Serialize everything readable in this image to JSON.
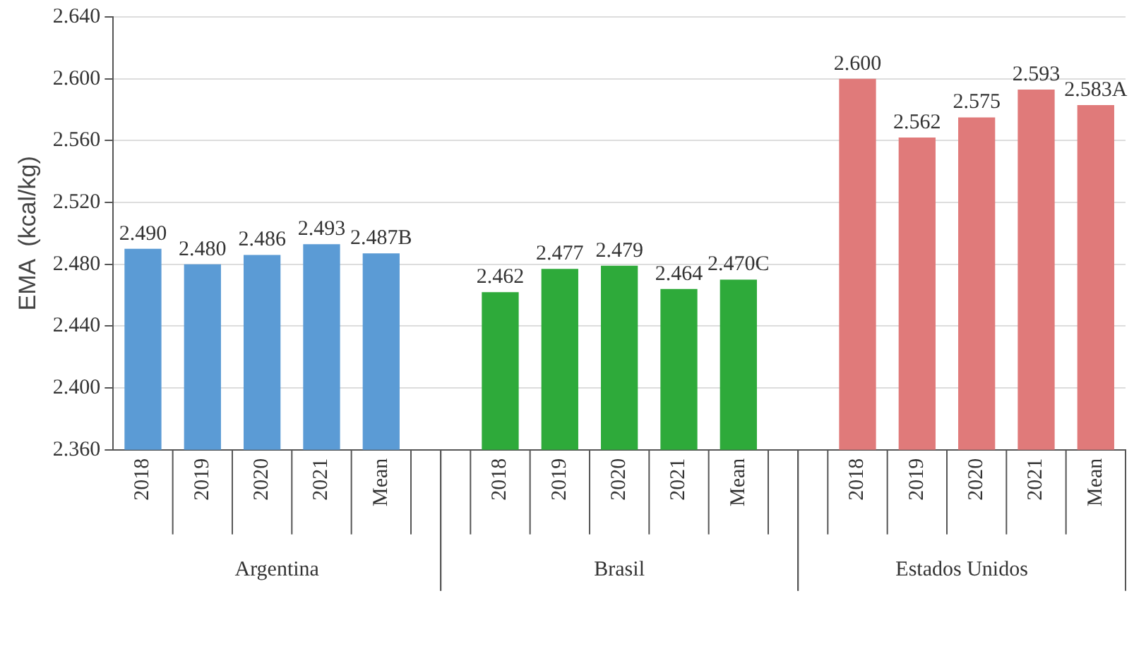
{
  "chart_data": {
    "type": "bar",
    "ylabel": "EMA  (kcal/kg)",
    "categories": [
      "2018",
      "2019",
      "2020",
      "2021",
      "Mean",
      null,
      "2018",
      "2019",
      "2020",
      "2021",
      "Mean",
      null,
      "2018",
      "2019",
      "2020",
      "2021",
      "Mean"
    ],
    "values": [
      2.49,
      2.48,
      2.486,
      2.493,
      2.487,
      null,
      2.462,
      2.477,
      2.479,
      2.464,
      2.47,
      null,
      2.6,
      2.562,
      2.575,
      2.593,
      2.583
    ],
    "value_labels": [
      "2.490",
      "2.480",
      "2.486",
      "2.493",
      "2.487B",
      null,
      "2.462",
      "2.477",
      "2.479",
      "2.464",
      "2.470C",
      null,
      "2.600",
      "2.562",
      "2.575",
      "2.593",
      "2.583A"
    ],
    "colors": [
      "#5b9bd5",
      "#5b9bd5",
      "#5b9bd5",
      "#5b9bd5",
      "#5b9bd5",
      null,
      "#2eaa3a",
      "#2eaa3a",
      "#2eaa3a",
      "#2eaa3a",
      "#2eaa3a",
      null,
      "#e07a7a",
      "#e07a7a",
      "#e07a7a",
      "#e07a7a",
      "#e07a7a"
    ],
    "annotations": [
      "Argentina",
      "Brasil",
      "Estados Unidos"
    ],
    "ylim": [
      2.36,
      2.64
    ],
    "yticks": [
      {
        "value": 2.36,
        "label": "2.360"
      },
      {
        "value": 2.4,
        "label": "2.400"
      },
      {
        "value": 2.44,
        "label": "2.440"
      },
      {
        "value": 2.48,
        "label": "2.480"
      },
      {
        "value": 2.52,
        "label": "2.520"
      },
      {
        "value": 2.56,
        "label": "2.560"
      },
      {
        "value": 2.6,
        "label": "2.600"
      },
      {
        "value": 2.64,
        "label": "2.640"
      }
    ],
    "grid": "y"
  }
}
